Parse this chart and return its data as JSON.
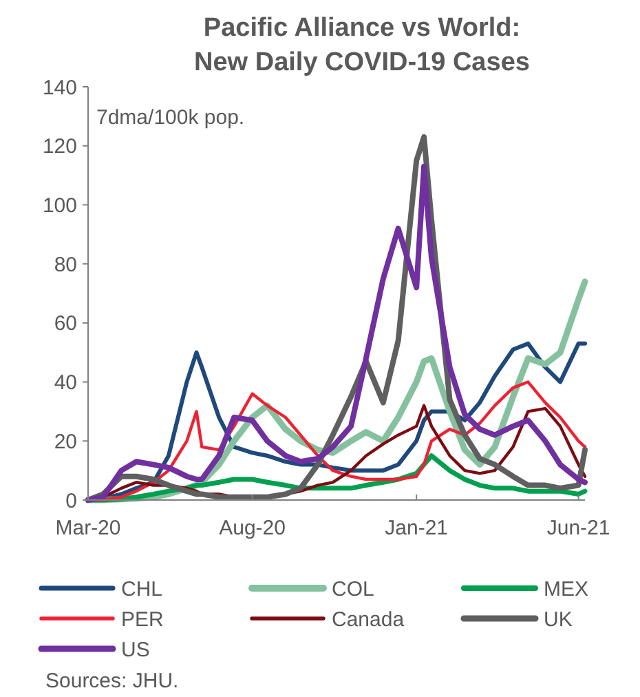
{
  "chart_data": {
    "type": "line",
    "title": "Pacific Alliance vs World:\nNew Daily COVID-19 Cases",
    "ylabel": "7dma/100k pop.",
    "x": [
      "2020-03-01",
      "2020-03-15",
      "2020-04-01",
      "2020-04-15",
      "2020-05-01",
      "2020-05-15",
      "2020-06-01",
      "2020-06-10",
      "2020-06-15",
      "2020-07-01",
      "2020-07-15",
      "2020-08-01",
      "2020-08-15",
      "2020-09-01",
      "2020-09-15",
      "2020-10-01",
      "2020-10-15",
      "2020-11-01",
      "2020-11-15",
      "2020-12-01",
      "2020-12-15",
      "2021-01-01",
      "2021-01-08",
      "2021-01-15",
      "2021-02-01",
      "2021-02-15",
      "2021-03-01",
      "2021-03-15",
      "2021-04-01",
      "2021-04-15",
      "2021-05-01",
      "2021-05-15",
      "2021-06-01",
      "2021-06-07"
    ],
    "series": [
      {
        "name": "CHL",
        "color": "#1f497d",
        "values": [
          0,
          0.5,
          2,
          4,
          6,
          15,
          40,
          50,
          45,
          28,
          18,
          16,
          15,
          13,
          12,
          12,
          11,
          10,
          10,
          10,
          12,
          20,
          27,
          30,
          30,
          27,
          33,
          42,
          51,
          53,
          45,
          40,
          53,
          53
        ]
      },
      {
        "name": "COL",
        "color": "#86c19f",
        "values": [
          0,
          0,
          0.3,
          0.5,
          1,
          2,
          4,
          5,
          6,
          12,
          20,
          28,
          32,
          24,
          20,
          17,
          16,
          20,
          23,
          20,
          28,
          40,
          47,
          48,
          30,
          17,
          12,
          18,
          35,
          48,
          46,
          50,
          68,
          74
        ]
      },
      {
        "name": "MEX",
        "color": "#00a050",
        "values": [
          0,
          0,
          0.3,
          1,
          2,
          3,
          4,
          5,
          5,
          6,
          7,
          7,
          6,
          5,
          4,
          4,
          4,
          4,
          5,
          6,
          7,
          9,
          12,
          15,
          10,
          7,
          5,
          4,
          4,
          3,
          3,
          3,
          2,
          3
        ]
      },
      {
        "name": "PER",
        "color": "#ee2233",
        "values": [
          0,
          0,
          1,
          3,
          6,
          10,
          20,
          30,
          18,
          17,
          25,
          36,
          32,
          28,
          22,
          15,
          10,
          8,
          7,
          7,
          7,
          8,
          12,
          20,
          24,
          22,
          26,
          32,
          38,
          40,
          33,
          28,
          20,
          18
        ]
      },
      {
        "name": "Canada",
        "color": "#7b0c12",
        "values": [
          0,
          1,
          4,
          6,
          5,
          5,
          4,
          3,
          2,
          2,
          1,
          1,
          1,
          2,
          3,
          5,
          6,
          10,
          15,
          19,
          22,
          25,
          32,
          25,
          15,
          10,
          9,
          10,
          18,
          30,
          31,
          25,
          12,
          8
        ]
      },
      {
        "name": "UK",
        "color": "#5f5f5f",
        "values": [
          0,
          2,
          8,
          8,
          7,
          5,
          3,
          2,
          2,
          1,
          1,
          1,
          1,
          2,
          4,
          12,
          22,
          35,
          47,
          33,
          54,
          115,
          123,
          95,
          34,
          22,
          14,
          12,
          8,
          5,
          5,
          4,
          5,
          17
        ]
      },
      {
        "name": "US",
        "color": "#7030a0",
        "values": [
          0,
          1,
          10,
          13,
          12,
          11,
          8,
          7,
          7,
          15,
          28,
          27,
          20,
          15,
          13,
          14,
          18,
          25,
          48,
          75,
          92,
          72,
          113,
          82,
          45,
          29,
          24,
          22,
          25,
          27,
          20,
          12,
          7,
          6
        ]
      }
    ],
    "xlim": [
      "2020-03-01",
      "2021-06-07"
    ],
    "xticks": [
      {
        "value": "2020-03-01",
        "label": "Mar-20"
      },
      {
        "value": "2020-08-01",
        "label": "Aug-20"
      },
      {
        "value": "2021-01-01",
        "label": "Jan-21"
      },
      {
        "value": "2021-06-01",
        "label": "Jun-21"
      }
    ],
    "ylim": [
      0,
      140
    ],
    "yticks": [
      0,
      20,
      40,
      60,
      80,
      100,
      120,
      140
    ],
    "grid": false,
    "legend": "bottom",
    "marker": "none",
    "line_style": "solid",
    "annotations": [
      "Sources: JHU."
    ]
  }
}
